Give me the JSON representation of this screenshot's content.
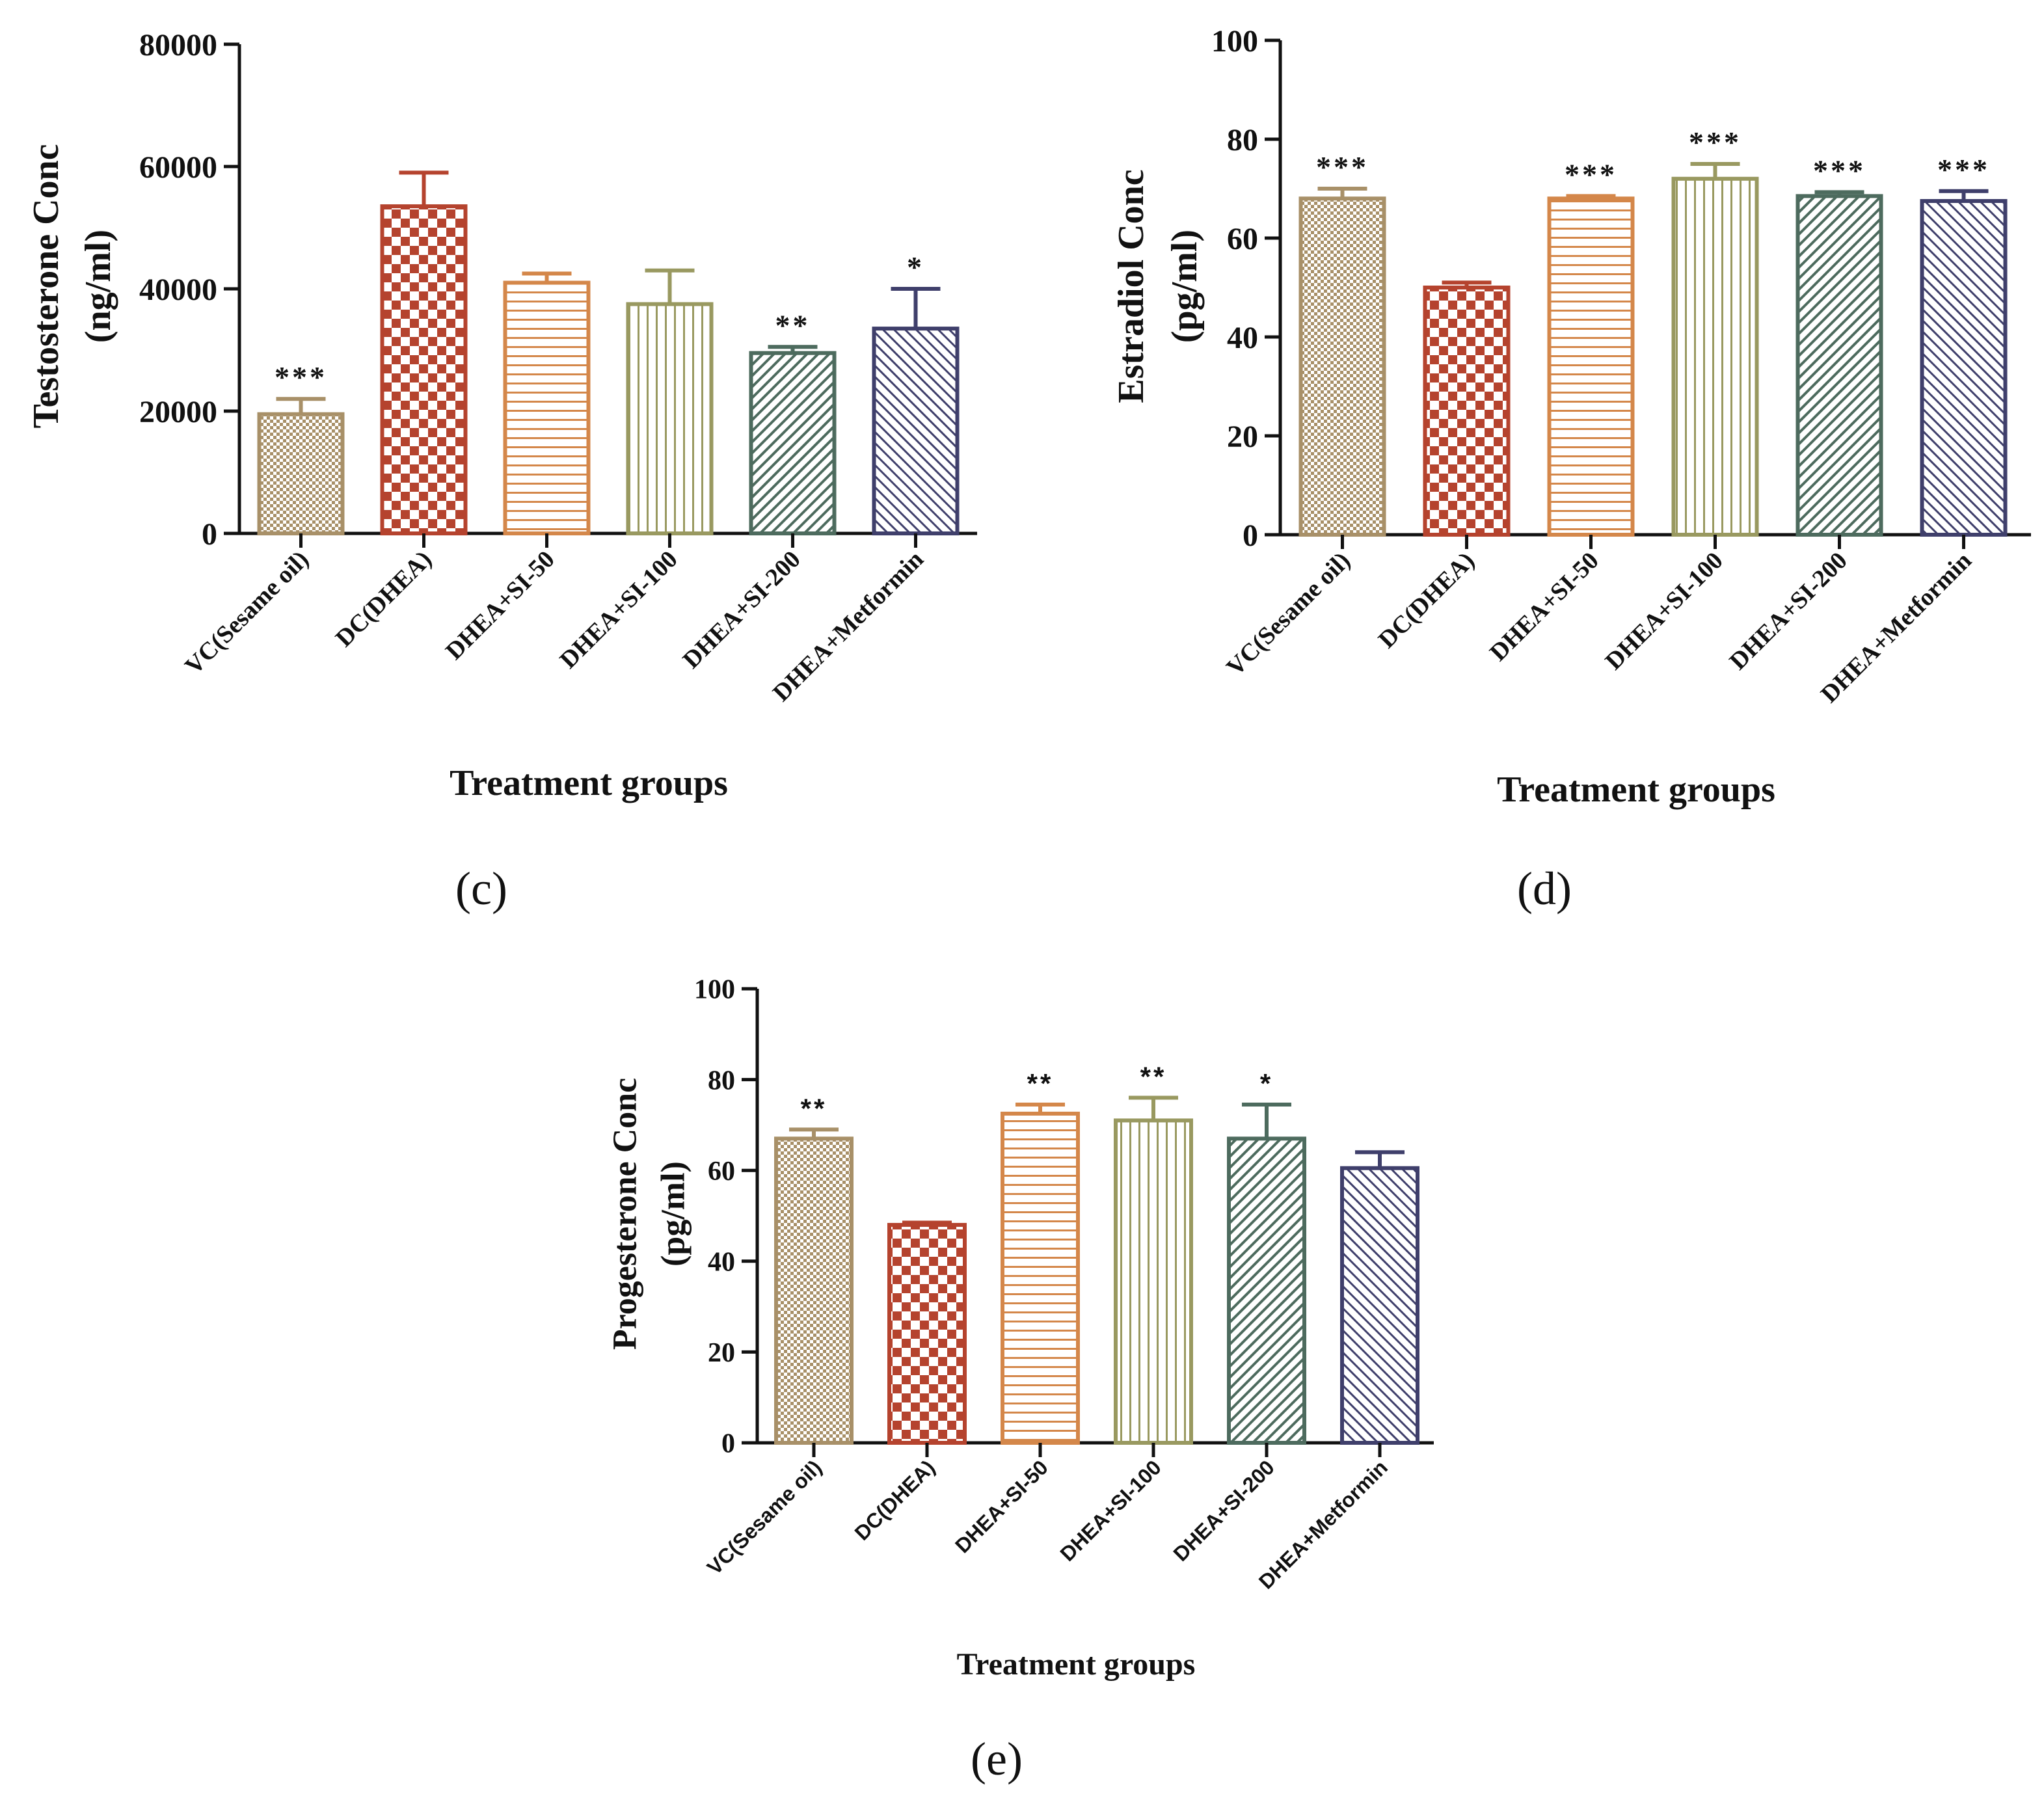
{
  "figure_panels": [
    "(c)",
    "(d)",
    "(e)"
  ],
  "chart_data": [
    {
      "panel": "(c)",
      "type": "bar",
      "ylabel_line1": "Testosterone Conc",
      "ylabel_line2": "(ng/ml)",
      "xlabel": "Treatment groups",
      "ylim": [
        0,
        80000
      ],
      "yticks": [
        0,
        20000,
        40000,
        60000,
        80000
      ],
      "categories": [
        "VC(Sesame oil)",
        "DC(DHEA)",
        "DHEA+SI-50",
        "DHEA+SI-100",
        "DHEA+SI-200",
        "DHEA+Metformin"
      ],
      "values": [
        19500,
        53500,
        41000,
        37500,
        29500,
        33500
      ],
      "errors": [
        2500,
        5500,
        1500,
        5500,
        1000,
        6500
      ],
      "significance": [
        "***",
        "",
        "",
        "",
        "**",
        "*"
      ],
      "fonts": "serif"
    },
    {
      "panel": "(d)",
      "type": "bar",
      "ylabel_line1": "Estradiol Conc",
      "ylabel_line2": "(pg/ml)",
      "xlabel": "Treatment groups",
      "ylim": [
        0,
        100
      ],
      "yticks": [
        0,
        20,
        40,
        60,
        80,
        100
      ],
      "categories": [
        "VC(Sesame oil)",
        "DC(DHEA)",
        "DHEA+SI-50",
        "DHEA+SI-100",
        "DHEA+SI-200",
        "DHEA+Metformin"
      ],
      "values": [
        68,
        50,
        68,
        72,
        68.5,
        67.5
      ],
      "errors": [
        2,
        1,
        0.5,
        3,
        0.8,
        2
      ],
      "significance": [
        "***",
        "",
        "***",
        "***",
        "***",
        "***"
      ],
      "fonts": "serif"
    },
    {
      "panel": "(e)",
      "type": "bar",
      "ylabel_line1": "Progesterone Conc",
      "ylabel_line2": "(pg/ml)",
      "xlabel": "Treatment groups",
      "ylim": [
        0,
        100
      ],
      "yticks": [
        0,
        20,
        40,
        60,
        80,
        100
      ],
      "categories": [
        "VC(Sesame oil)",
        "DC(DHEA)",
        "DHEA+SI-50",
        "DHEA+SI-100",
        "DHEA+SI-200",
        "DHEA+Metformin"
      ],
      "values": [
        67,
        48,
        72.5,
        71,
        67,
        60.5
      ],
      "errors": [
        2,
        0.5,
        2,
        5,
        7.5,
        3.5
      ],
      "significance": [
        "**",
        "",
        "**",
        "**",
        "*",
        ""
      ],
      "fonts": "sans"
    }
  ],
  "colors": {
    "vc": "#a89068",
    "dc": "#b5432e",
    "si50": "#d4874a",
    "si100": "#999960",
    "si200": "#4d6b5e",
    "metformin": "#3f3f6b",
    "axis": "#111111",
    "text": "#111111"
  }
}
